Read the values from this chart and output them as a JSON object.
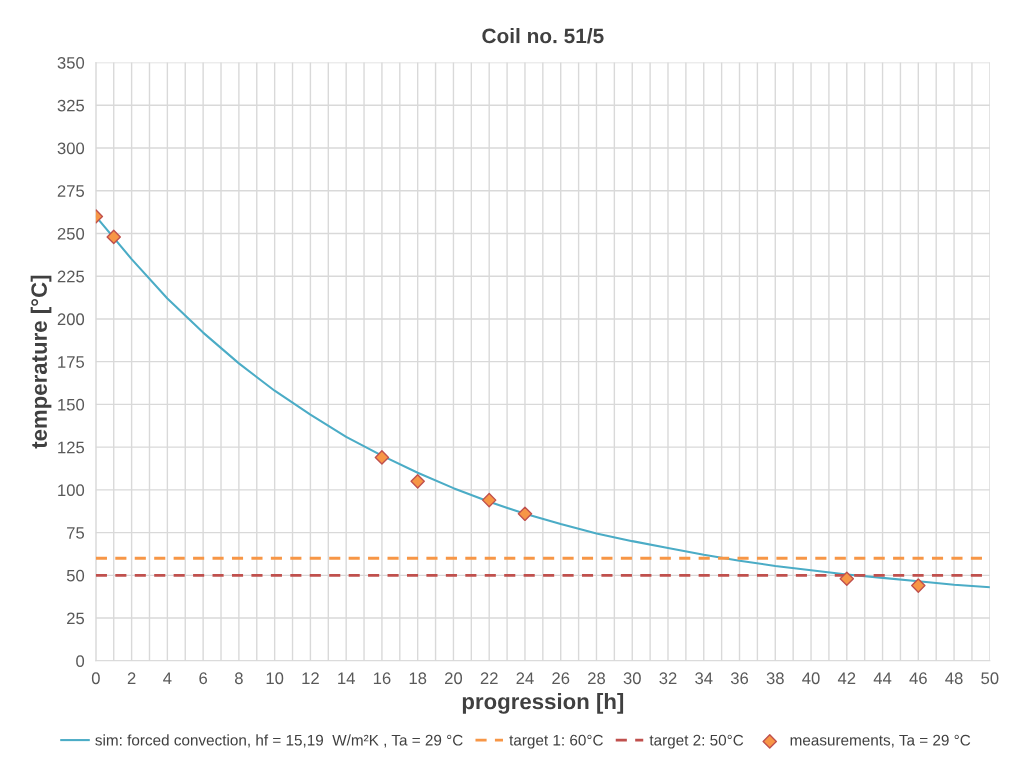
{
  "chart_data": {
    "type": "line",
    "title": "Coil no. 51/5",
    "xlabel": "progression [h]",
    "ylabel": "temperature [°C]",
    "series": [
      {
        "name": "sim: forced convection, hf = 15,19  W/m²K , Ta = 29 °C",
        "color": "#4bacc6",
        "marker": "none",
        "x": [
          0,
          2,
          4,
          6,
          8,
          10,
          12,
          14,
          16,
          18,
          20,
          22,
          24,
          26,
          28,
          30,
          32,
          34,
          36,
          38,
          40,
          42,
          44,
          46,
          48,
          50
        ],
        "values": [
          260,
          235,
          212,
          192,
          174,
          158,
          144,
          131,
          120,
          110,
          101,
          93,
          86,
          80,
          74.5,
          70,
          66,
          62,
          58.5,
          55.5,
          53,
          50.5,
          48.5,
          46.5,
          44.5,
          43
        ]
      },
      {
        "name": "target 1: 60°C",
        "color": "#f79646",
        "line_style": "dashed",
        "marker": "none",
        "x": [
          0,
          50
        ],
        "values": [
          60,
          60
        ]
      },
      {
        "name": "target 2: 50°C",
        "color": "#c0504d",
        "line_style": "dashed",
        "marker": "none",
        "x": [
          0,
          50
        ],
        "values": [
          50,
          50
        ]
      },
      {
        "name": "measurements, Ta = 29 °C",
        "type": "scatter",
        "color": "#f79646",
        "marker": "diamond",
        "x": [
          0,
          1,
          16,
          18,
          22,
          24,
          42,
          46
        ],
        "values": [
          260,
          248,
          119,
          105,
          94,
          86,
          48,
          44
        ]
      }
    ],
    "xlim": [
      0,
      50
    ],
    "xticks": [
      0,
      2,
      4,
      6,
      8,
      10,
      12,
      14,
      16,
      18,
      20,
      22,
      24,
      26,
      28,
      30,
      32,
      34,
      36,
      38,
      40,
      42,
      44,
      46,
      48,
      50
    ],
    "ylim": [
      0,
      350
    ],
    "yticks": [
      0,
      25,
      50,
      75,
      100,
      125,
      150,
      175,
      200,
      225,
      250,
      275,
      300,
      325,
      350
    ],
    "grid": true,
    "legend": "bottom"
  }
}
